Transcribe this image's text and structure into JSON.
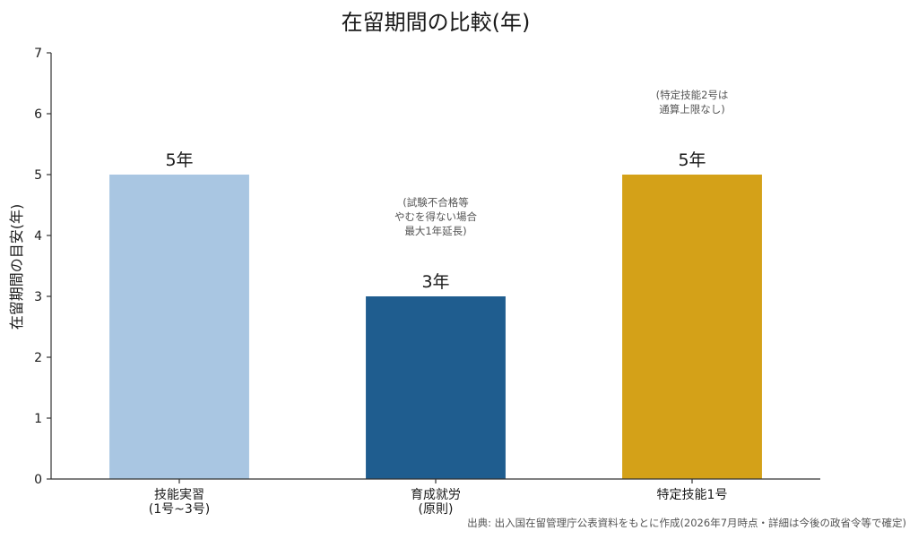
{
  "chart_data": {
    "type": "bar",
    "title": "在留期間の比較(年)",
    "xlabel": "",
    "ylabel": "在留期間の目安(年)",
    "ylim": [
      0,
      7
    ],
    "yticks": [
      0,
      1,
      2,
      3,
      4,
      5,
      6,
      7
    ],
    "grid": false,
    "categories": [
      [
        "技能実習",
        "(1号~3号)"
      ],
      [
        "育成就労",
        "(原則)"
      ],
      [
        "特定技能1号"
      ]
    ],
    "values": [
      5,
      3,
      5
    ],
    "value_labels": [
      "5年",
      "3年",
      "5年"
    ],
    "colors": [
      "#a9c6e2",
      "#1f5d8f",
      "#d4a118"
    ],
    "annotations": [
      {
        "category_index": 1,
        "lines": [
          "(試験不合格等",
          "やむを得ない場合",
          "最大1年延長)"
        ]
      },
      {
        "category_index": 2,
        "lines": [
          "(特定技能2号は",
          "通算上限なし)"
        ]
      }
    ],
    "source": "出典: 出入国在留管理庁公表資料をもとに作成(2026年7月時点・詳細は今後の政省令等で確定)"
  }
}
